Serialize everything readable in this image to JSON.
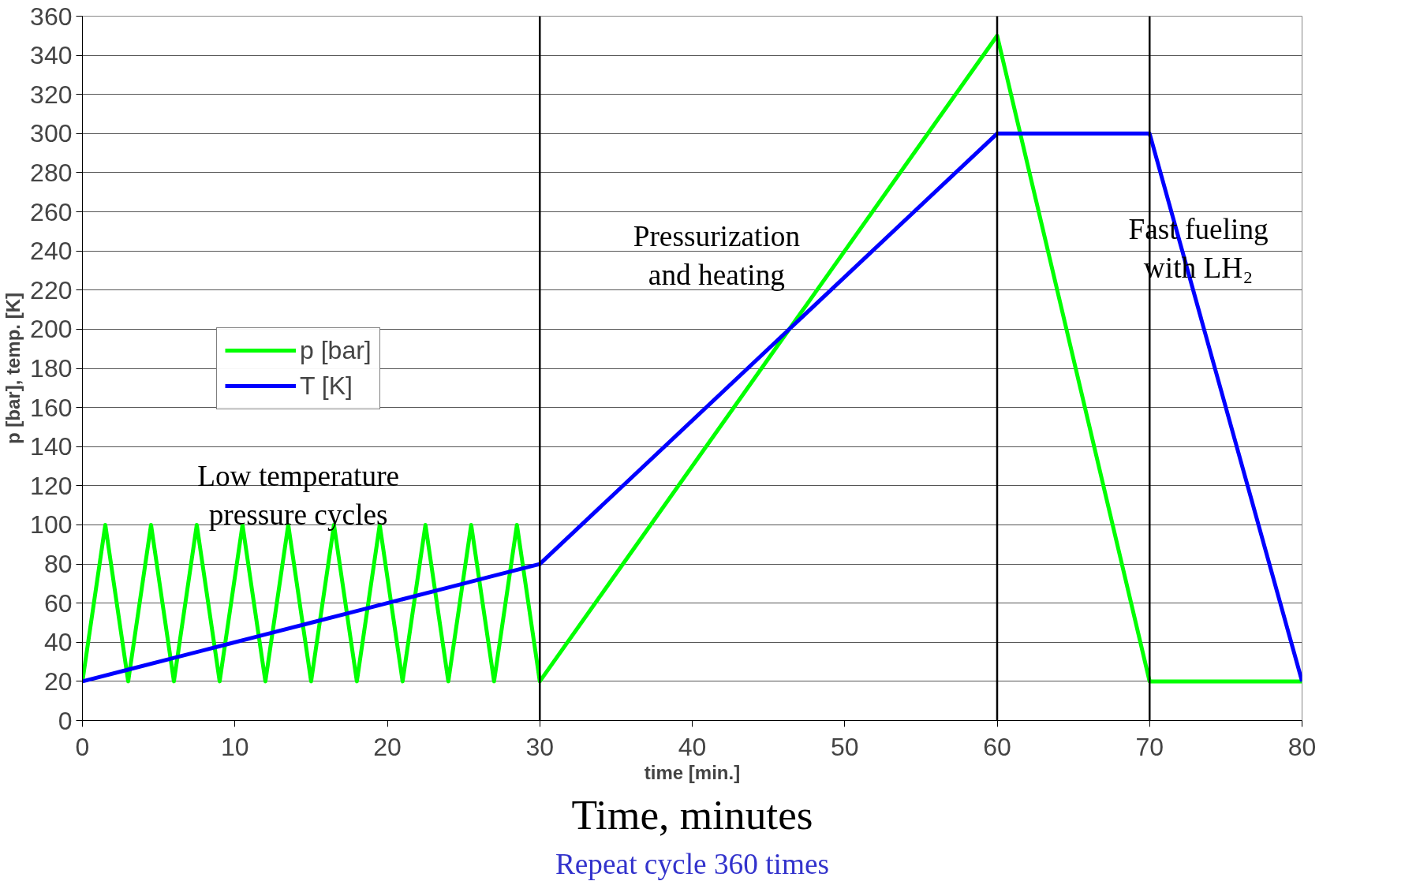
{
  "chart_data": {
    "type": "line",
    "xlabel": "time [min.]",
    "ylabel": "p [bar], temp. [K]",
    "xlim": [
      0,
      80
    ],
    "xticks": [
      0,
      10,
      20,
      30,
      40,
      50,
      60,
      70,
      80
    ],
    "ylim": [
      0,
      360
    ],
    "yticks": [
      0,
      20,
      40,
      60,
      80,
      100,
      120,
      140,
      160,
      180,
      200,
      220,
      240,
      260,
      280,
      300,
      320,
      340,
      360
    ],
    "grid": "y",
    "legend": "left",
    "marker": "none",
    "line_style": "solid",
    "series": [
      {
        "name": "p [bar]",
        "color": "#00ff00",
        "x": [
          0,
          1.5,
          3,
          4.5,
          6,
          7.5,
          9,
          10.5,
          12,
          13.5,
          15,
          16.5,
          18,
          19.5,
          21,
          22.5,
          24,
          25.5,
          27,
          28.5,
          30,
          60,
          70,
          80
        ],
        "values": [
          20,
          100,
          20,
          100,
          20,
          100,
          20,
          100,
          20,
          100,
          20,
          100,
          20,
          100,
          20,
          100,
          20,
          100,
          20,
          100,
          20,
          350,
          20,
          20
        ]
      },
      {
        "name": "T [K]",
        "color": "#0000ff",
        "x": [
          0,
          3,
          6,
          9,
          12,
          15,
          18,
          21,
          24,
          27,
          30,
          60,
          70,
          80
        ],
        "values": [
          20,
          26,
          32,
          38,
          44,
          50,
          56,
          62,
          68,
          74,
          80,
          300,
          300,
          20
        ]
      }
    ],
    "ref_lines": [
      {
        "axis": "x",
        "value": 30,
        "color": "#000000"
      },
      {
        "axis": "x",
        "value": 60,
        "color": "#000000"
      },
      {
        "axis": "x",
        "value": 70,
        "color": "#000000"
      }
    ],
    "annotations": [
      "Low temperature\npressure cycles",
      "Pressurization\nand heating",
      "Fast fueling\nwith LH₂",
      "Time, minutes",
      "Repeat cycle 360 times"
    ]
  }
}
